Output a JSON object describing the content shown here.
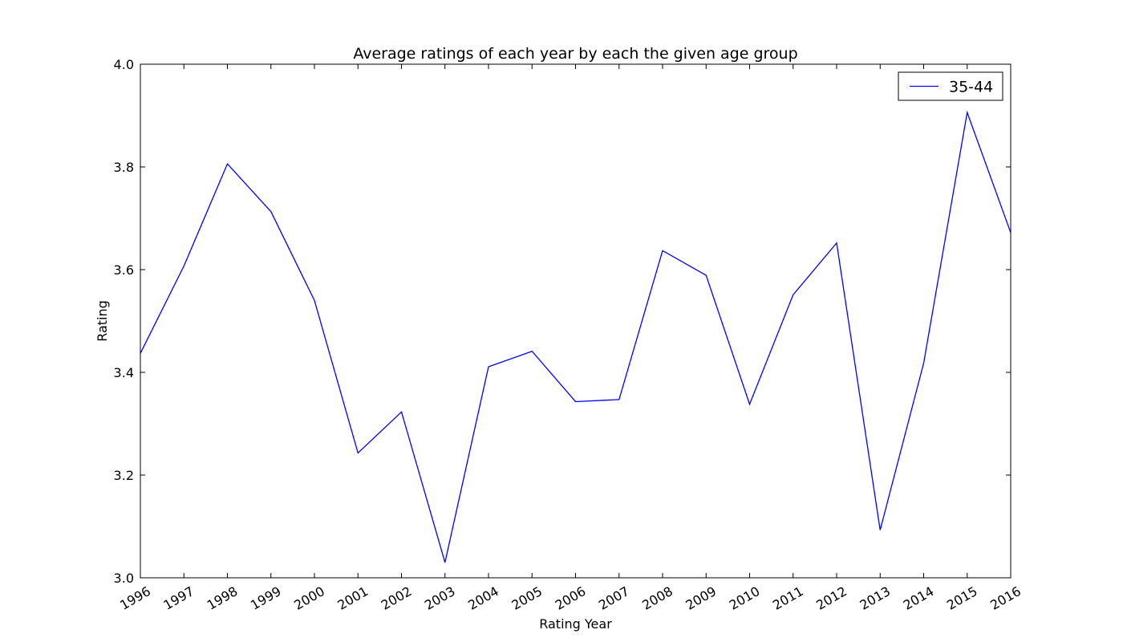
{
  "chart_data": {
    "type": "line",
    "title": "Average ratings of each year by each the given age group",
    "xlabel": "Rating Year",
    "ylabel": "Rating",
    "xlim": [
      1996,
      2016
    ],
    "ylim": [
      3.0,
      4.0
    ],
    "x_ticks": [
      "1996",
      "1997",
      "1998",
      "1999",
      "2000",
      "2001",
      "2002",
      "2003",
      "2004",
      "2005",
      "2006",
      "2007",
      "2008",
      "2009",
      "2010",
      "2011",
      "2012",
      "2013",
      "2014",
      "2015",
      "2016"
    ],
    "y_ticks": [
      "3.0",
      "3.2",
      "3.4",
      "3.6",
      "3.8",
      "4.0"
    ],
    "grid": false,
    "legend_position": "top-right",
    "series": [
      {
        "name": "35-44",
        "color": "#0000ff",
        "x": [
          1996,
          1997,
          1998,
          1999,
          2000,
          2001,
          2002,
          2003,
          2004,
          2005,
          2006,
          2007,
          2008,
          2009,
          2010,
          2011,
          2012,
          2013,
          2014,
          2015,
          2016
        ],
        "values": [
          3.437,
          3.607,
          3.806,
          3.713,
          3.54,
          3.243,
          3.323,
          3.03,
          3.411,
          3.441,
          3.343,
          3.347,
          3.637,
          3.589,
          3.338,
          3.551,
          3.652,
          3.093,
          3.418,
          3.906,
          3.672
        ]
      }
    ]
  }
}
